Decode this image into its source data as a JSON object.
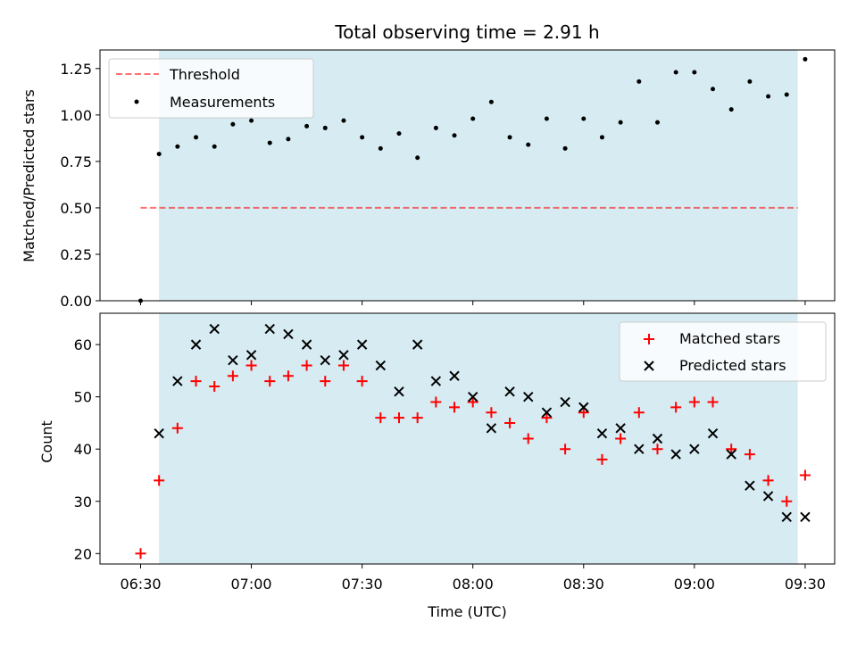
{
  "title": "Total observing time = 2.91 h",
  "colors": {
    "shade": "#add8e6",
    "threshold": "#ff0000",
    "measurements": "#000000",
    "matched": "#ff0000",
    "predicted": "#000000"
  },
  "chart_data": [
    {
      "type": "scatter",
      "title": "Total observing time = 2.91 h",
      "xlabel": "",
      "ylabel": "Matched/Predicted stars",
      "xlim": [
        "06:19",
        "09:38"
      ],
      "ylim": [
        0,
        1.35
      ],
      "yticks": [
        "0.00",
        "0.25",
        "0.50",
        "0.75",
        "1.00",
        "1.25"
      ],
      "shaded_region": {
        "start": "06:35",
        "end": "09:28"
      },
      "legend_position": "top-left",
      "threshold": {
        "name": "Threshold",
        "value": 0.5,
        "x_start": "06:30",
        "x_end": "09:28"
      },
      "series": [
        {
          "name": "Measurements",
          "x": [
            "06:30",
            "06:35",
            "06:40",
            "06:45",
            "06:50",
            "06:55",
            "07:00",
            "07:05",
            "07:10",
            "07:15",
            "07:20",
            "07:25",
            "07:30",
            "07:35",
            "07:40",
            "07:45",
            "07:50",
            "07:55",
            "08:00",
            "08:05",
            "08:10",
            "08:15",
            "08:20",
            "08:25",
            "08:30",
            "08:35",
            "08:40",
            "08:45",
            "08:50",
            "08:55",
            "09:00",
            "09:05",
            "09:10",
            "09:15",
            "09:20",
            "09:25",
            "09:30"
          ],
          "y": [
            0.0,
            0.79,
            0.83,
            0.88,
            0.83,
            0.95,
            0.97,
            0.85,
            0.87,
            0.94,
            0.93,
            0.97,
            0.88,
            0.82,
            0.9,
            0.77,
            0.93,
            0.89,
            0.98,
            1.07,
            0.88,
            0.84,
            0.98,
            0.82,
            0.98,
            0.88,
            0.96,
            1.18,
            0.96,
            1.23,
            1.23,
            1.14,
            1.03,
            1.18,
            1.1,
            1.11,
            1.3
          ]
        }
      ]
    },
    {
      "type": "scatter",
      "title": "",
      "xlabel": "Time (UTC)",
      "ylabel": "Count",
      "xlim": [
        "06:19",
        "09:38"
      ],
      "ylim": [
        18,
        66
      ],
      "yticks": [
        "20",
        "30",
        "40",
        "50",
        "60"
      ],
      "xticks": [
        "06:30",
        "07:00",
        "07:30",
        "08:00",
        "08:30",
        "09:00",
        "09:30"
      ],
      "shaded_region": {
        "start": "06:35",
        "end": "09:28"
      },
      "legend_position": "top-right",
      "series": [
        {
          "name": "Matched stars",
          "x": [
            "06:30",
            "06:35",
            "06:40",
            "06:45",
            "06:50",
            "06:55",
            "07:00",
            "07:05",
            "07:10",
            "07:15",
            "07:20",
            "07:25",
            "07:30",
            "07:35",
            "07:40",
            "07:45",
            "07:50",
            "07:55",
            "08:00",
            "08:05",
            "08:10",
            "08:15",
            "08:20",
            "08:25",
            "08:30",
            "08:35",
            "08:40",
            "08:45",
            "08:50",
            "08:55",
            "09:00",
            "09:05",
            "09:10",
            "09:15",
            "09:20",
            "09:25",
            "09:30"
          ],
          "y": [
            20,
            34,
            44,
            53,
            52,
            54,
            56,
            53,
            54,
            56,
            53,
            56,
            53,
            46,
            46,
            46,
            49,
            48,
            49,
            47,
            45,
            42,
            46,
            40,
            47,
            38,
            42,
            47,
            40,
            48,
            49,
            49,
            40,
            39,
            34,
            30,
            35
          ]
        },
        {
          "name": "Predicted stars",
          "x": [
            "06:35",
            "06:40",
            "06:45",
            "06:50",
            "06:55",
            "07:00",
            "07:05",
            "07:10",
            "07:15",
            "07:20",
            "07:25",
            "07:30",
            "07:35",
            "07:40",
            "07:45",
            "07:50",
            "07:55",
            "08:00",
            "08:05",
            "08:10",
            "08:15",
            "08:20",
            "08:25",
            "08:30",
            "08:35",
            "08:40",
            "08:45",
            "08:50",
            "08:55",
            "09:00",
            "09:05",
            "09:10",
            "09:15",
            "09:20",
            "09:25",
            "09:30"
          ],
          "y": [
            43,
            53,
            60,
            63,
            57,
            58,
            63,
            62,
            60,
            57,
            58,
            60,
            56,
            51,
            60,
            53,
            54,
            50,
            44,
            51,
            50,
            47,
            49,
            48,
            43,
            44,
            40,
            42,
            39,
            40,
            43,
            39,
            33,
            31,
            27,
            27
          ]
        }
      ]
    }
  ]
}
